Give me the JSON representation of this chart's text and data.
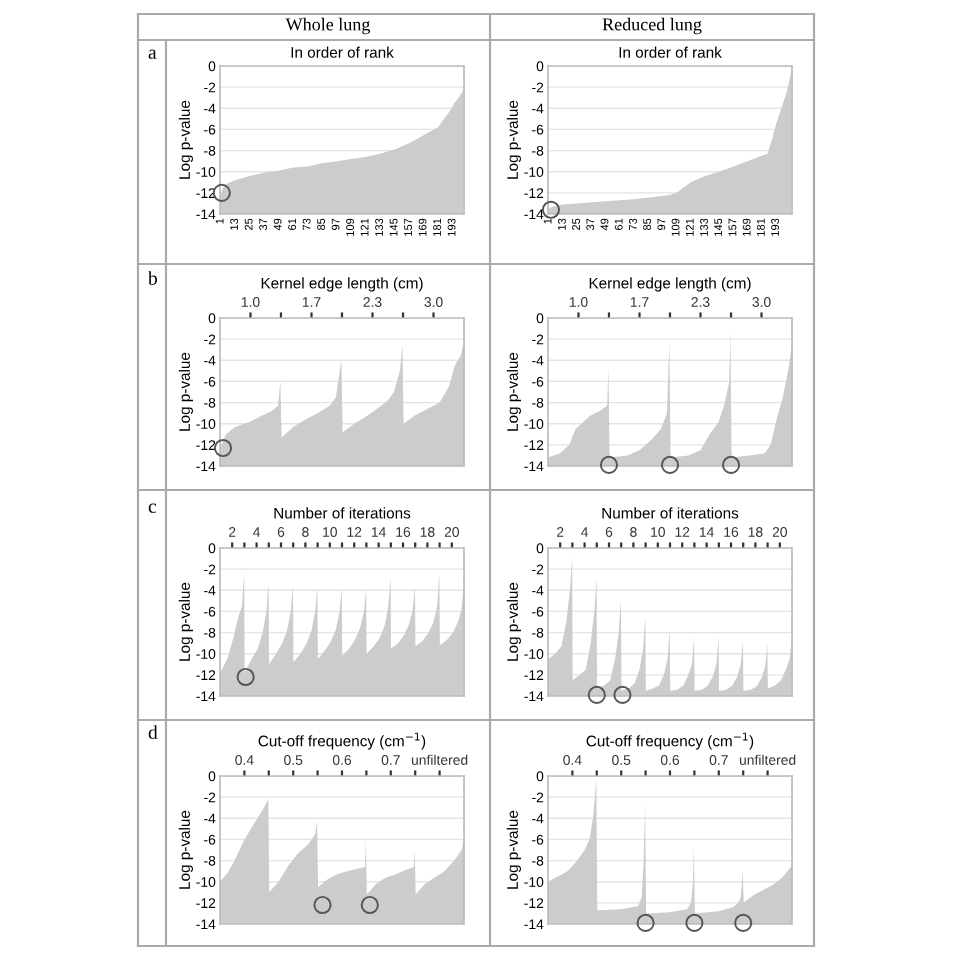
{
  "chart_data": [
    {
      "type": "area",
      "title": "In order of rank",
      "ylabel": "Log p-value",
      "ylim": [
        -14,
        0
      ],
      "yticks": [
        0,
        -2,
        -4,
        -6,
        -8,
        -10,
        -12,
        -14
      ],
      "grid": "y",
      "xlim": [
        0.5,
        202.5
      ],
      "xticks": [
        1,
        13,
        25,
        37,
        49,
        61,
        73,
        85,
        97,
        109,
        121,
        133,
        145,
        157,
        169,
        181,
        193
      ],
      "annotations": [
        "Whole lung",
        "a"
      ],
      "series": [
        {
          "type": "area",
          "color": "#cccccc",
          "x": [
            1,
            3,
            7,
            13,
            25,
            37,
            49,
            61,
            73,
            85,
            97,
            109,
            121,
            133,
            145,
            157,
            165,
            173,
            181,
            186,
            190,
            194,
            198,
            202
          ],
          "values": [
            -12.2,
            -11.5,
            -11.1,
            -10.8,
            -10.4,
            -10.1,
            -9.9,
            -9.6,
            -9.5,
            -9.2,
            -9,
            -8.8,
            -8.6,
            -8.3,
            -7.9,
            -7.3,
            -6.8,
            -6.3,
            -5.8,
            -5,
            -4.4,
            -3.6,
            -3,
            -2.3
          ]
        },
        {
          "type": "scatter",
          "color": "#555555",
          "marker": "circle",
          "x": [
            2
          ],
          "values": [
            -12
          ]
        }
      ]
    },
    {
      "type": "area",
      "title": "In order of rank",
      "ylabel": "Log p-value",
      "ylim": [
        -14,
        0
      ],
      "yticks": [
        0,
        -2,
        -4,
        -6,
        -8,
        -10,
        -12,
        -14
      ],
      "grid": "y",
      "xlim": [
        0.5,
        206.5
      ],
      "xticks": [
        1,
        13,
        25,
        37,
        49,
        61,
        73,
        85,
        97,
        109,
        121,
        133,
        145,
        157,
        169,
        181,
        193
      ],
      "annotations": [
        "Reduced lung"
      ],
      "series": [
        {
          "type": "area",
          "color": "#cccccc",
          "x": [
            1,
            5,
            13,
            25,
            49,
            73,
            97,
            103,
            109,
            115,
            121,
            133,
            145,
            157,
            169,
            181,
            186,
            188,
            190,
            193,
            196,
            199,
            202,
            205,
            206
          ],
          "values": [
            -13.5,
            -13.3,
            -13.1,
            -13,
            -12.8,
            -12.6,
            -12.3,
            -12.2,
            -12,
            -11.5,
            -11,
            -10.4,
            -10,
            -9.5,
            -9,
            -8.5,
            -8.3,
            -7.5,
            -6.8,
            -5.5,
            -4.5,
            -3.5,
            -2.5,
            -1,
            -0.3
          ]
        },
        {
          "type": "scatter",
          "color": "#555555",
          "marker": "circle",
          "x": [
            3
          ],
          "values": [
            -13.6
          ]
        }
      ]
    },
    {
      "type": "area",
      "xlabel": "Kernel edge length (cm)",
      "ylabel": "Log p-value",
      "ylim": [
        -14,
        0
      ],
      "yticks": [
        0,
        -2,
        -4,
        -6,
        -8,
        -10,
        -12,
        -14
      ],
      "grid": "y",
      "xlim": [
        0.667,
        3.333
      ],
      "xticks": [
        {
          "value": 1,
          "label": "1.0"
        },
        {
          "value": 1.333,
          "label": null
        },
        {
          "value": 1.667,
          "label": "1.7"
        },
        {
          "value": 2,
          "label": null
        },
        {
          "value": 2.333,
          "label": "2.3"
        },
        {
          "value": 2.667,
          "label": null
        },
        {
          "value": 3,
          "label": "3.0"
        }
      ],
      "annotations": [
        "b"
      ],
      "series": [
        {
          "type": "area",
          "color": "#cccccc",
          "x": [
            0.667,
            0.733,
            0.833,
            1.0,
            1.133,
            1.233,
            1.3,
            1.327,
            1.34,
            1.467,
            1.6,
            1.733,
            1.867,
            1.933,
            1.993,
            2.007,
            2.133,
            2.267,
            2.4,
            2.5,
            2.567,
            2.633,
            2.66,
            2.673,
            2.8,
            2.933,
            3.067,
            3.167,
            3.233,
            3.3,
            3.333
          ],
          "values": [
            -12.3,
            -11,
            -10.3,
            -9.8,
            -9.2,
            -8.8,
            -8.3,
            -6,
            -11.3,
            -10.3,
            -9.6,
            -9,
            -8.3,
            -7.5,
            -4,
            -10.8,
            -10,
            -9.3,
            -8.5,
            -7.8,
            -7,
            -5,
            -2.5,
            -10,
            -9.2,
            -8.6,
            -8,
            -6.5,
            -4.5,
            -3.5,
            -2.2
          ]
        },
        {
          "type": "scatter",
          "color": "#555555",
          "marker": "circle",
          "x": [
            0.7
          ],
          "values": [
            -12.3
          ]
        }
      ]
    },
    {
      "type": "area",
      "xlabel": "Kernel edge length (cm)",
      "ylabel": "Log p-value",
      "ylim": [
        -14,
        0
      ],
      "yticks": [
        0,
        -2,
        -4,
        -6,
        -8,
        -10,
        -12,
        -14
      ],
      "grid": "y",
      "xlim": [
        0.667,
        3.333
      ],
      "xticks": [
        {
          "value": 1,
          "label": "1.0"
        },
        {
          "value": 1.333,
          "label": null
        },
        {
          "value": 1.667,
          "label": "1.7"
        },
        {
          "value": 2,
          "label": null
        },
        {
          "value": 2.333,
          "label": "2.3"
        },
        {
          "value": 2.667,
          "label": null
        },
        {
          "value": 3,
          "label": "3.0"
        }
      ],
      "series": [
        {
          "type": "area",
          "color": "#cccccc",
          "x": [
            0.667,
            0.8,
            0.9,
            0.967,
            1.033,
            1.133,
            1.233,
            1.313,
            1.327,
            1.34,
            1.533,
            1.667,
            1.8,
            1.9,
            1.967,
            1.993,
            2.007,
            2.2,
            2.333,
            2.433,
            2.533,
            2.6,
            2.647,
            2.66,
            2.673,
            2.867,
            3.033,
            3.1,
            3.167,
            3.233,
            3.3,
            3.333
          ],
          "values": [
            -13.2,
            -12.8,
            -12,
            -10.5,
            -10,
            -9.2,
            -8.8,
            -8.3,
            -4.8,
            -13.2,
            -13,
            -12.5,
            -11.5,
            -10.5,
            -9,
            -2.2,
            -13.2,
            -13,
            -12.5,
            -11,
            -9.8,
            -8,
            -6,
            -1.2,
            -13.2,
            -13,
            -12.8,
            -12,
            -9.5,
            -7.5,
            -4.5,
            -2.5
          ]
        },
        {
          "type": "scatter",
          "color": "#555555",
          "marker": "circle",
          "x": [
            1.333,
            2.0,
            2.667
          ],
          "values": [
            -13.9,
            -13.9,
            -13.9
          ]
        }
      ]
    },
    {
      "type": "area",
      "xlabel": "Number of iterations",
      "ylabel": "Log p-value",
      "ylim": [
        -14,
        0
      ],
      "yticks": [
        0,
        -2,
        -4,
        -6,
        -8,
        -10,
        -12,
        -14
      ],
      "grid": "y",
      "xlim": [
        1,
        21
      ],
      "xticks": [
        2,
        {
          "value": 3,
          "label": null
        },
        4,
        {
          "value": 5,
          "label": null
        },
        6,
        {
          "value": 7,
          "label": null
        },
        8,
        {
          "value": 9,
          "label": null
        },
        10,
        {
          "value": 11,
          "label": null
        },
        12,
        {
          "value": 13,
          "label": null
        },
        14,
        {
          "value": 15,
          "label": null
        },
        16,
        {
          "value": 17,
          "label": null
        },
        18,
        {
          "value": 19,
          "label": null
        },
        20
      ],
      "annotations": [
        "c"
      ],
      "series": [
        {
          "type": "area",
          "color": "#cccccc",
          "x": [
            1.02,
            1.6,
            2.1,
            2.5,
            2.8,
            2.98,
            3.02,
            3.6,
            4.1,
            4.5,
            4.8,
            4.98,
            5.02,
            5.6,
            6.1,
            6.5,
            6.8,
            6.98,
            7.02,
            7.6,
            8.1,
            8.5,
            8.8,
            8.98,
            9.02,
            9.6,
            10.1,
            10.5,
            10.8,
            10.98,
            11.02,
            11.6,
            12.1,
            12.5,
            12.8,
            12.98,
            13.02,
            13.6,
            14.1,
            14.5,
            14.8,
            14.98,
            15.02,
            15.6,
            16.1,
            16.5,
            16.8,
            16.98,
            17.02,
            17.6,
            18.1,
            18.5,
            18.8,
            18.98,
            19.02,
            19.6,
            20.1,
            20.5,
            20.8,
            20.98
          ],
          "values": [
            -11.8,
            -10.5,
            -8.5,
            -6.5,
            -5.5,
            -2.3,
            -11.8,
            -10.5,
            -9.5,
            -8,
            -6,
            -3.3,
            -11,
            -10,
            -9,
            -7.8,
            -6,
            -3.5,
            -10.8,
            -10,
            -9,
            -7.8,
            -6,
            -3.7,
            -10.5,
            -9.7,
            -8.8,
            -7.7,
            -6,
            -3.8,
            -10.2,
            -9.5,
            -8.6,
            -7.5,
            -6,
            -3.8,
            -10,
            -9.3,
            -8.5,
            -7.3,
            -5.5,
            -2.7,
            -9.5,
            -9,
            -8.2,
            -7.2,
            -5.8,
            -3.6,
            -9.3,
            -8.8,
            -8,
            -7,
            -5.5,
            -2.4,
            -9.2,
            -8.7,
            -8,
            -7,
            -5.8,
            -3.5
          ]
        },
        {
          "type": "scatter",
          "color": "#555555",
          "marker": "circle",
          "x": [
            3.1
          ],
          "values": [
            -12.2
          ]
        }
      ]
    },
    {
      "type": "area",
      "xlabel": "Number of iterations",
      "ylabel": "Log p-value",
      "ylim": [
        -14,
        0
      ],
      "yticks": [
        0,
        -2,
        -4,
        -6,
        -8,
        -10,
        -12,
        -14
      ],
      "grid": "y",
      "xlim": [
        1,
        21
      ],
      "xticks": [
        2,
        {
          "value": 3,
          "label": null
        },
        4,
        {
          "value": 5,
          "label": null
        },
        6,
        {
          "value": 7,
          "label": null
        },
        8,
        {
          "value": 9,
          "label": null
        },
        10,
        {
          "value": 11,
          "label": null
        },
        12,
        {
          "value": 13,
          "label": null
        },
        14,
        {
          "value": 15,
          "label": null
        },
        16,
        {
          "value": 17,
          "label": null
        },
        18,
        {
          "value": 19,
          "label": null
        },
        20
      ],
      "series": [
        {
          "type": "area",
          "color": "#cccccc",
          "x": [
            1.02,
            1.6,
            2.1,
            2.5,
            2.8,
            2.98,
            3.02,
            3.6,
            4.1,
            4.5,
            4.8,
            4.98,
            5.02,
            5.6,
            6.1,
            6.5,
            6.8,
            6.98,
            7.02,
            7.6,
            8.1,
            8.5,
            8.8,
            8.98,
            9.02,
            9.6,
            10.1,
            10.5,
            10.8,
            10.98,
            11.02,
            11.6,
            12.1,
            12.5,
            12.8,
            12.98,
            13.02,
            13.6,
            14.1,
            14.5,
            14.8,
            14.98,
            15.02,
            15.6,
            16.1,
            16.5,
            16.8,
            16.98,
            17.02,
            17.6,
            18.1,
            18.5,
            18.8,
            18.98,
            19.02,
            19.6,
            20.1,
            20.5,
            20.8,
            20.98
          ],
          "values": [
            -10.5,
            -10,
            -9.3,
            -7,
            -4,
            -0.8,
            -12.5,
            -12,
            -11.5,
            -9,
            -6,
            -2.8,
            -13.3,
            -13,
            -12.5,
            -10.5,
            -8,
            -4.8,
            -13.5,
            -13.3,
            -12.8,
            -11.5,
            -9.5,
            -6.5,
            -13.5,
            -13.3,
            -13,
            -12,
            -10.5,
            -7.8,
            -13.5,
            -13.4,
            -13,
            -12,
            -11,
            -8.4,
            -13.5,
            -13.4,
            -13,
            -12.2,
            -11,
            -8.4,
            -13.5,
            -13.4,
            -13,
            -12.2,
            -11,
            -8.8,
            -13.5,
            -13.4,
            -13.1,
            -12.3,
            -11.2,
            -9,
            -13.3,
            -13,
            -12.5,
            -11.5,
            -10.5,
            -8.7
          ]
        },
        {
          "type": "scatter",
          "color": "#555555",
          "marker": "circle",
          "x": [
            5,
            7.1
          ],
          "values": [
            -13.9,
            -13.9
          ]
        }
      ]
    },
    {
      "type": "area",
      "xlabel": "Cut-off frequency (cm$^{−1}$)",
      "ylabel": "Log p-value",
      "ylim": [
        -14,
        0
      ],
      "yticks": [
        0,
        -2,
        -4,
        -6,
        -8,
        -10,
        -12,
        -14
      ],
      "grid": "y",
      "xlim": [
        0.35,
        0.85
      ],
      "xticks": [
        0.4,
        {
          "value": 0.45,
          "label": null
        },
        0.5,
        {
          "value": 0.55,
          "label": null
        },
        0.6,
        {
          "value": 0.65,
          "label": null
        },
        0.7,
        {
          "value": 0.75,
          "label": null
        },
        {
          "value": 0.8,
          "label": "unfiltered"
        }
      ],
      "annotations": [
        "d"
      ],
      "series": [
        {
          "type": "area",
          "color": "#cccccc",
          "x": [
            0.35,
            0.365,
            0.38,
            0.4,
            0.42,
            0.44,
            0.449,
            0.451,
            0.47,
            0.49,
            0.51,
            0.53,
            0.545,
            0.549,
            0.551,
            0.57,
            0.59,
            0.61,
            0.63,
            0.647,
            0.649,
            0.651,
            0.67,
            0.69,
            0.71,
            0.73,
            0.747,
            0.749,
            0.751,
            0.77,
            0.79,
            0.81,
            0.83,
            0.845,
            0.85
          ],
          "values": [
            -10,
            -9.2,
            -8,
            -6,
            -4.5,
            -3,
            -2.2,
            -11,
            -10,
            -8.5,
            -7.3,
            -6.5,
            -5.5,
            -4.3,
            -10.5,
            -9.8,
            -9.3,
            -9,
            -8.8,
            -8.6,
            -6,
            -11.2,
            -10.2,
            -9.6,
            -9.3,
            -8.9,
            -8.6,
            -7,
            -11.2,
            -10.2,
            -9.6,
            -9,
            -8,
            -7,
            -6
          ]
        },
        {
          "type": "scatter",
          "color": "#555555",
          "marker": "circle",
          "x": [
            0.56,
            0.657
          ],
          "values": [
            -12.2,
            -12.2
          ]
        }
      ]
    },
    {
      "type": "area",
      "xlabel": "Cut-off frequency (cm$^{−1}$)",
      "ylabel": "Log p-value",
      "ylim": [
        -14,
        0
      ],
      "yticks": [
        0,
        -2,
        -4,
        -6,
        -8,
        -10,
        -12,
        -14
      ],
      "grid": "y",
      "xlim": [
        0.35,
        0.85
      ],
      "xticks": [
        0.4,
        {
          "value": 0.45,
          "label": null
        },
        0.5,
        {
          "value": 0.55,
          "label": null
        },
        0.6,
        {
          "value": 0.65,
          "label": null
        },
        0.7,
        {
          "value": 0.75,
          "label": null
        },
        {
          "value": 0.8,
          "label": "unfiltered"
        }
      ],
      "series": [
        {
          "type": "area",
          "color": "#cccccc",
          "x": [
            0.35,
            0.37,
            0.39,
            0.41,
            0.425,
            0.435,
            0.442,
            0.446,
            0.449,
            0.451,
            0.5,
            0.535,
            0.542,
            0.546,
            0.549,
            0.551,
            0.6,
            0.635,
            0.643,
            0.647,
            0.649,
            0.651,
            0.7,
            0.73,
            0.74,
            0.745,
            0.749,
            0.751,
            0.77,
            0.79,
            0.81,
            0.83,
            0.85
          ],
          "values": [
            -10,
            -9.5,
            -9,
            -8,
            -7,
            -6,
            -4,
            -2,
            -0.3,
            -12.7,
            -12.6,
            -12.3,
            -11.5,
            -8,
            -2.5,
            -13,
            -12.9,
            -12.6,
            -12,
            -10,
            -6.7,
            -13,
            -12.8,
            -12.4,
            -12,
            -11.5,
            -9,
            -12,
            -11.3,
            -10.8,
            -10.3,
            -9.6,
            -8.5
          ]
        },
        {
          "type": "scatter",
          "color": "#555555",
          "marker": "circle",
          "x": [
            0.55,
            0.65,
            0.75
          ],
          "values": [
            -13.9,
            -13.9,
            -13.9
          ]
        }
      ]
    }
  ]
}
